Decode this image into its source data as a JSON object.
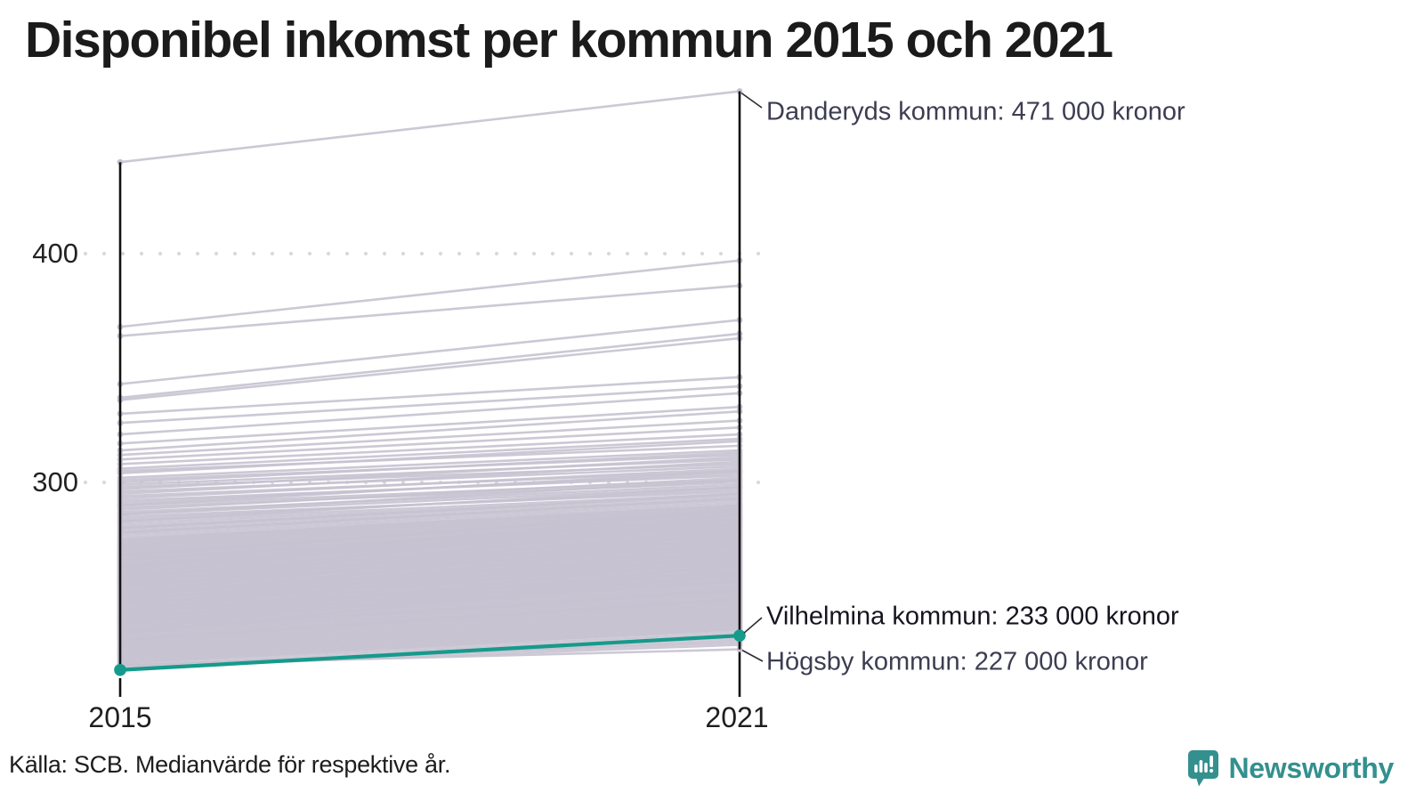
{
  "title": "Disponibel inkomst per kommun 2015 och 2021",
  "source": {
    "text": "Källa: SCB. Medianvärde för respektive år."
  },
  "branding": {
    "name": "Newsworthy",
    "color": "#33908e",
    "icon": "speech-bubble-bar-chart"
  },
  "colors": {
    "background_line": "#c6c2d0",
    "highlight_line": "#169a8b",
    "axis": "#111111",
    "grid_dot": "#d8d6de",
    "annotation_slate": "#3d3d52",
    "annotation_dark": "#15151f",
    "connector": "#2b2b33"
  },
  "annotations": [
    {
      "id": "danderyd",
      "text": "Danderyds kommun: 471 000 kronor"
    },
    {
      "id": "vilhelmina",
      "text": "Vilhelmina kommun: 233 000 kronor"
    },
    {
      "id": "hogsby",
      "text": "Högsby kommun: 227 000 kronor"
    }
  ],
  "chart_data": {
    "type": "line",
    "variant": "slope",
    "title": "Disponibel inkomst per kommun 2015 och 2021",
    "x_labels": [
      "2015",
      "2021"
    ],
    "y_tick_labels": [
      "400",
      "300"
    ],
    "y_ticks": [
      400,
      300
    ],
    "ylim": [
      210,
      480
    ],
    "grid": "dotted horizontal gridlines at 300 and 400",
    "legend_position": "none",
    "units": "thousand kronor",
    "highlighted": {
      "name": "Vilhelmina kommun",
      "values": [
        218,
        233
      ]
    },
    "named": [
      {
        "name": "Danderyds kommun",
        "values": [
          440,
          471
        ]
      },
      {
        "name": "Högsby kommun",
        "values": [
          220,
          227
        ]
      }
    ],
    "background": [
      [
        368,
        397
      ],
      [
        364,
        386
      ],
      [
        343,
        371
      ],
      [
        337,
        365
      ],
      [
        336,
        363
      ],
      [
        330,
        346
      ],
      [
        326,
        342
      ],
      [
        321,
        339
      ],
      [
        317,
        333
      ],
      [
        314,
        331
      ],
      [
        312,
        327
      ],
      [
        310,
        324
      ],
      [
        308,
        321
      ],
      [
        306,
        319
      ],
      [
        305,
        316
      ],
      [
        304,
        318
      ],
      [
        302,
        314
      ],
      [
        301,
        312
      ],
      [
        300,
        313
      ],
      [
        299,
        310
      ],
      [
        298,
        308
      ],
      [
        297,
        311
      ],
      [
        296,
        307
      ],
      [
        295,
        309
      ],
      [
        294,
        305
      ],
      [
        293,
        306
      ],
      [
        292,
        303
      ],
      [
        291,
        304
      ],
      [
        290,
        301
      ],
      [
        290,
        305
      ],
      [
        289,
        300
      ],
      [
        288,
        302
      ],
      [
        287,
        299
      ],
      [
        286,
        298
      ],
      [
        286,
        301
      ],
      [
        285,
        296
      ],
      [
        284,
        297
      ],
      [
        283,
        295
      ],
      [
        283,
        298
      ],
      [
        282,
        294
      ],
      [
        281,
        293
      ],
      [
        280,
        295
      ],
      [
        280,
        292
      ],
      [
        279,
        291
      ],
      [
        278,
        290
      ],
      [
        278,
        293
      ],
      [
        277,
        289
      ],
      [
        276,
        288
      ],
      [
        275,
        290
      ],
      [
        275,
        287
      ],
      [
        274,
        286
      ],
      [
        274,
        289
      ],
      [
        273,
        285
      ],
      [
        273,
        288
      ],
      [
        272,
        284
      ],
      [
        272,
        287
      ],
      [
        271,
        283
      ],
      [
        271,
        286
      ],
      [
        270,
        282
      ],
      [
        270,
        285
      ],
      [
        269,
        281
      ],
      [
        269,
        284
      ],
      [
        268,
        280
      ],
      [
        268,
        283
      ],
      [
        267,
        279
      ],
      [
        267,
        282
      ],
      [
        266,
        278
      ],
      [
        266,
        281
      ],
      [
        265,
        277
      ],
      [
        265,
        280
      ],
      [
        264,
        276
      ],
      [
        264,
        279
      ],
      [
        263,
        275
      ],
      [
        263,
        278
      ],
      [
        262,
        274
      ],
      [
        262,
        277
      ],
      [
        261,
        273
      ],
      [
        261,
        276
      ],
      [
        260,
        272
      ],
      [
        260,
        275
      ],
      [
        259,
        271
      ],
      [
        259,
        274
      ],
      [
        258,
        270
      ],
      [
        258,
        273
      ],
      [
        257,
        269
      ],
      [
        257,
        272
      ],
      [
        256,
        268
      ],
      [
        256,
        271
      ],
      [
        255,
        267
      ],
      [
        255,
        270
      ],
      [
        254,
        266
      ],
      [
        254,
        269
      ],
      [
        253,
        265
      ],
      [
        253,
        268
      ],
      [
        252,
        264
      ],
      [
        252,
        267
      ],
      [
        251,
        263
      ],
      [
        251,
        266
      ],
      [
        250,
        262
      ],
      [
        250,
        265
      ],
      [
        249,
        261
      ],
      [
        249,
        264
      ],
      [
        248,
        260
      ],
      [
        248,
        263
      ],
      [
        247,
        259
      ],
      [
        247,
        262
      ],
      [
        246,
        258
      ],
      [
        246,
        261
      ],
      [
        245,
        257
      ],
      [
        245,
        260
      ],
      [
        244,
        256
      ],
      [
        244,
        259
      ],
      [
        243,
        255
      ],
      [
        243,
        258
      ],
      [
        242,
        254
      ],
      [
        242,
        257
      ],
      [
        241,
        253
      ],
      [
        241,
        256
      ],
      [
        240,
        252
      ],
      [
        240,
        255
      ],
      [
        239,
        251
      ],
      [
        239,
        254
      ],
      [
        238,
        250
      ],
      [
        238,
        253
      ],
      [
        237,
        249
      ],
      [
        237,
        252
      ],
      [
        236,
        248
      ],
      [
        236,
        251
      ],
      [
        235,
        247
      ],
      [
        235,
        250
      ],
      [
        234,
        246
      ],
      [
        234,
        249
      ],
      [
        233,
        245
      ],
      [
        233,
        248
      ],
      [
        232,
        244
      ],
      [
        232,
        247
      ],
      [
        231,
        243
      ],
      [
        231,
        246
      ],
      [
        230,
        242
      ],
      [
        230,
        245
      ],
      [
        229,
        241
      ],
      [
        229,
        244
      ],
      [
        228,
        240
      ],
      [
        228,
        243
      ],
      [
        227,
        239
      ],
      [
        227,
        242
      ],
      [
        226,
        238
      ],
      [
        226,
        241
      ],
      [
        225,
        237
      ],
      [
        225,
        240
      ],
      [
        224,
        236
      ],
      [
        224,
        239
      ],
      [
        223,
        235
      ],
      [
        223,
        238
      ],
      [
        222,
        234
      ],
      [
        222,
        237
      ],
      [
        221,
        233
      ],
      [
        221,
        236
      ],
      [
        220,
        232
      ],
      [
        220,
        230
      ],
      [
        219,
        231
      ],
      [
        219,
        229
      ],
      [
        262,
        288
      ],
      [
        260,
        286
      ],
      [
        258,
        284
      ],
      [
        256,
        282
      ],
      [
        254,
        280
      ],
      [
        252,
        278
      ],
      [
        250,
        276
      ],
      [
        248,
        274
      ],
      [
        246,
        272
      ],
      [
        244,
        270
      ],
      [
        242,
        268
      ],
      [
        240,
        266
      ],
      [
        238,
        264
      ],
      [
        236,
        262
      ],
      [
        234,
        260
      ],
      [
        263,
        281
      ],
      [
        259,
        277
      ],
      [
        255,
        273
      ],
      [
        251,
        269
      ],
      [
        247,
        265
      ],
      [
        243,
        261
      ],
      [
        239,
        257
      ],
      [
        235,
        253
      ],
      [
        231,
        249
      ],
      [
        266,
        284
      ],
      [
        268,
        288
      ],
      [
        264,
        282
      ],
      [
        257,
        275
      ],
      [
        249,
        267
      ],
      [
        241,
        259
      ]
    ]
  }
}
